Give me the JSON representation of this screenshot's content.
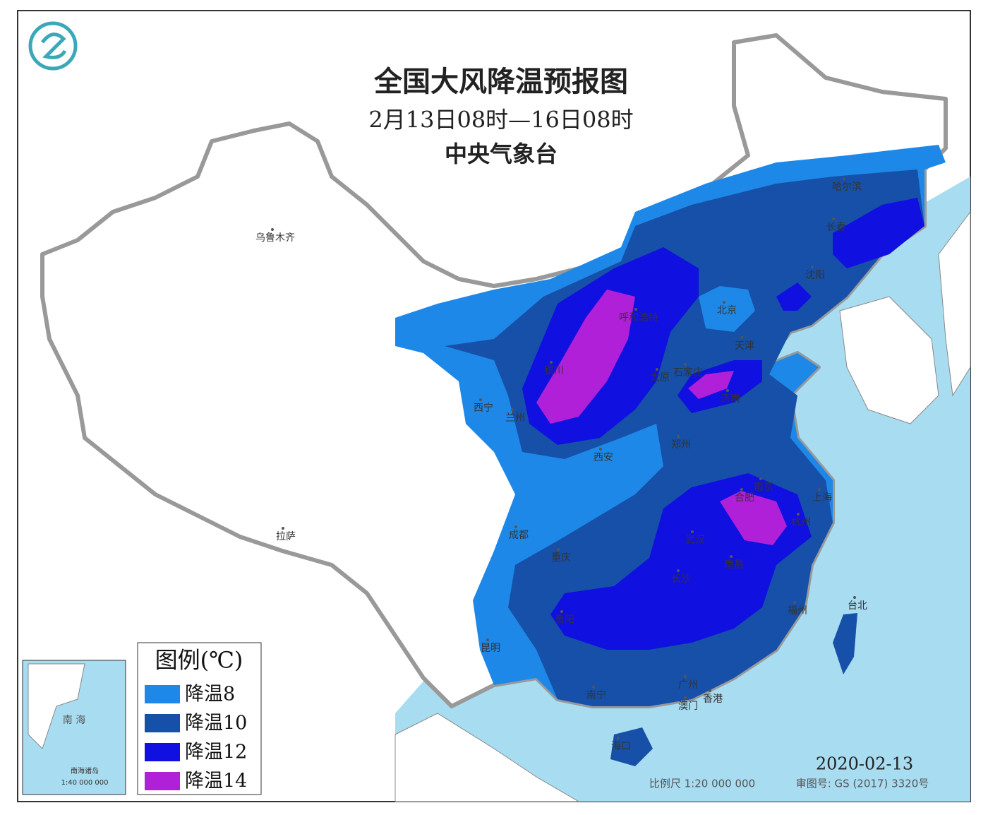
{
  "header": {
    "title": "全国大风降温预报图",
    "subtitle": "2月13日08时—16日08时",
    "agency": "中央气象台"
  },
  "legend": {
    "title": "图例(℃)",
    "items": [
      {
        "label": "降温8",
        "color": "#1e88e8"
      },
      {
        "label": "降温10",
        "color": "#1650a8"
      },
      {
        "label": "降温12",
        "color": "#1010e0"
      },
      {
        "label": "降温14",
        "color": "#b020d8"
      }
    ]
  },
  "cities": [
    "乌鲁木齐",
    "拉萨",
    "西宁",
    "兰州",
    "银川",
    "呼和浩特",
    "太原",
    "石家庄",
    "北京",
    "天津",
    "济南",
    "郑州",
    "西安",
    "成都",
    "重庆",
    "武汉",
    "合肥",
    "南京",
    "上海",
    "杭州",
    "南昌",
    "长沙",
    "贵阳",
    "昆明",
    "南宁",
    "广州",
    "香港",
    "澳门",
    "海口",
    "福州",
    "台北",
    "沈阳",
    "长春",
    "哈尔滨"
  ],
  "inset": {
    "sea": "南 海",
    "islands": "南海诸岛",
    "scale": "1:40 000 000"
  },
  "footer": {
    "date": "2020-02-13",
    "scale": "比例尺 1:20 000 000",
    "review": "审图号: GS (2017) 3320号"
  }
}
